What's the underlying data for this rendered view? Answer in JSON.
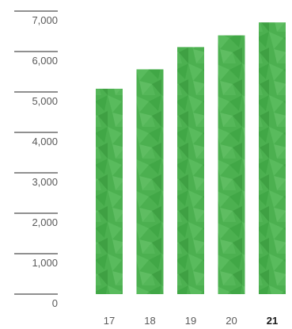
{
  "chart_data": {
    "type": "bar",
    "categories": [
      "17",
      "18",
      "19",
      "20",
      "21"
    ],
    "values": [
      5080,
      5560,
      6110,
      6400,
      6720
    ],
    "highlight_category": "21",
    "ylim": [
      0,
      7000
    ],
    "yticks": [
      0,
      1000,
      2000,
      3000,
      4000,
      5000,
      6000,
      7000
    ],
    "ytick_labels": [
      "0",
      "1,000",
      "2,000",
      "3,000",
      "4,000",
      "5,000",
      "6,000",
      "7,000"
    ],
    "grid": false,
    "title": "",
    "xlabel": "",
    "ylabel": "",
    "colors": {
      "bar": "#4cb050",
      "bar_dark": "#3a9a3f",
      "bar_light": "#6cc46e",
      "axis_line": "#222222"
    }
  }
}
